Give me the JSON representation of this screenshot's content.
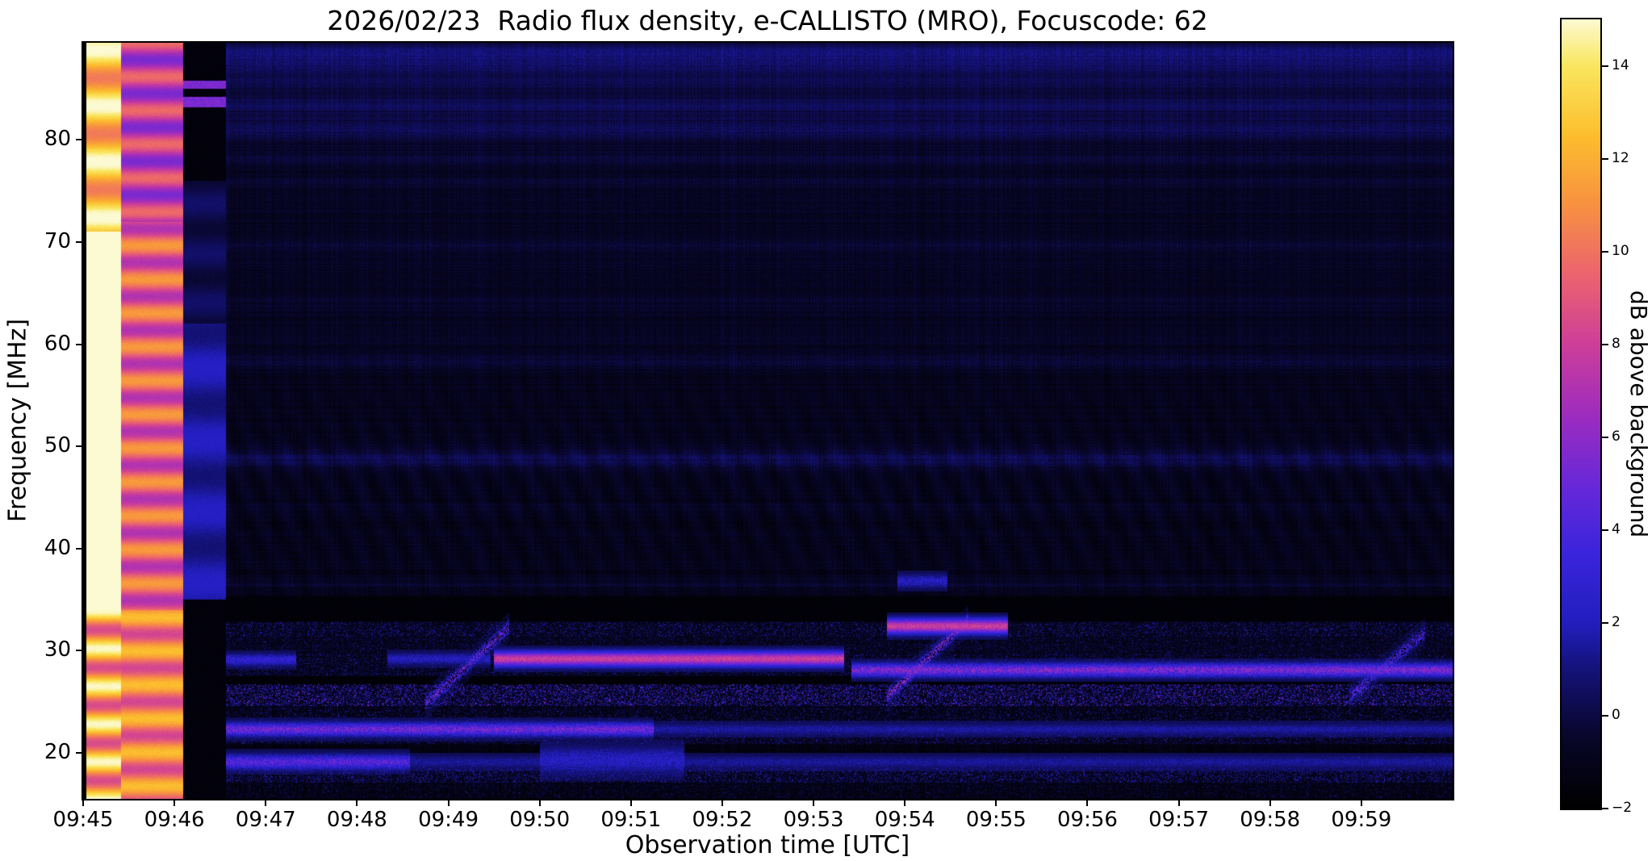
{
  "title": "2026/02/23  Radio flux density, e-CALLISTO (MRO), Focuscode: 62",
  "chart_data": {
    "type": "heatmap",
    "title": "2026/02/23  Radio flux density, e-CALLISTO (MRO), Focuscode: 62",
    "xlabel": "Observation time [UTC]",
    "ylabel": "Frequency [MHz]",
    "colorbar_label": "dB above background",
    "x_ticks": [
      "09:45",
      "09:46",
      "09:47",
      "09:48",
      "09:49",
      "09:50",
      "09:51",
      "09:52",
      "09:53",
      "09:54",
      "09:55",
      "09:56",
      "09:57",
      "09:58",
      "09:59"
    ],
    "x_start_time": "09:45:00",
    "x_end_time": "10:00:00",
    "duration_s": 900,
    "y_ticks": [
      "20",
      "30",
      "40",
      "50",
      "60",
      "70",
      "80"
    ],
    "y_range_mhz": [
      15.5,
      89.5
    ],
    "colorbar_ticks": [
      "−2",
      "0",
      "2",
      "4",
      "6",
      "8",
      "10",
      "12",
      "14"
    ],
    "value_range_db": [
      -2,
      15
    ],
    "legend_position": "right-colorbar",
    "grid": false,
    "colormap": {
      "values": [
        -2,
        -0.5,
        1,
        2,
        3.5,
        5,
        6.5,
        8,
        9.5,
        11,
        12.5,
        14,
        15
      ],
      "colors": [
        "#000000",
        "#080628",
        "#141278",
        "#221ebe",
        "#3a24dc",
        "#6928d8",
        "#9e2cbe",
        "#cd3e99",
        "#eb646e",
        "#f89141",
        "#fcbe2d",
        "#fae65f",
        "#fcfad2"
      ]
    },
    "spectrogram": {
      "main_start": 94,
      "rfi_top": 35,
      "base_db": -0.95,
      "calibration_bands": [
        {
          "t0": 0,
          "t1": 25,
          "style": "white",
          "note": "saturated calibration column, ~15 dB"
        },
        {
          "t0": 25,
          "t1": 66,
          "style": "orange",
          "note": "calibration column ~9-12 dB with horizontal striping"
        },
        {
          "t0": 66,
          "t1": 94,
          "style": "dark",
          "note": "dark column, blue 35-62 MHz, black elsewhere"
        }
      ],
      "blue_rows": [
        {
          "f": 88.4,
          "w": 0.6,
          "db": 1.7
        },
        {
          "f": 87.1,
          "w": 0.5,
          "db": 1.2
        },
        {
          "f": 85.6,
          "w": 0.5,
          "db": 0.9
        },
        {
          "f": 83.4,
          "w": 0.5,
          "db": 1.0
        },
        {
          "f": 81.0,
          "w": 0.8,
          "db": 1.5
        },
        {
          "f": 78.1,
          "w": 0.5,
          "db": 0.8
        },
        {
          "f": 75.9,
          "w": 0.4,
          "db": 0.6
        },
        {
          "f": 69.5,
          "w": 0.5,
          "db": 0.6
        },
        {
          "f": 64.0,
          "w": 0.4,
          "db": 0.4
        },
        {
          "f": 58.4,
          "w": 0.6,
          "db": 0.9
        },
        {
          "f": 48.8,
          "w": 0.7,
          "db": 1.5
        },
        {
          "f": 44.0,
          "w": 0.4,
          "db": 0.3
        },
        {
          "f": 36.6,
          "w": 0.5,
          "db": 0.7
        }
      ],
      "black_bands": [
        [
          32.9,
          35.3
        ],
        [
          26.6,
          27.5
        ]
      ],
      "rfi_bands": [
        {
          "f0": 31.4,
          "f1": 32.8,
          "density": 0.18,
          "base": 0.5,
          "max": 4.0
        },
        {
          "f0": 29.8,
          "f1": 31.3,
          "density": 0.1,
          "base": 0.3,
          "max": 2.5
        },
        {
          "f0": 27.6,
          "f1": 29.7,
          "density": 0.15,
          "base": 0.5,
          "max": 3.0
        },
        {
          "f0": 24.6,
          "f1": 26.7,
          "density": 0.3,
          "base": 0.8,
          "max": 7.5
        },
        {
          "f0": 22.9,
          "f1": 24.4,
          "density": 0.12,
          "base": 0.5,
          "max": 3.0
        },
        {
          "f0": 20.9,
          "f1": 21.9,
          "density": 0.15,
          "base": 0.6,
          "max": 3.5
        },
        {
          "f0": 18.6,
          "f1": 19.6,
          "density": 0.18,
          "base": 0.6,
          "max": 3.0
        },
        {
          "f0": 17.1,
          "f1": 18.5,
          "density": 0.22,
          "base": 0.7,
          "max": 4.0
        },
        {
          "f0": 15.6,
          "f1": 16.9,
          "density": 0.08,
          "base": 0.3,
          "max": 2.0
        }
      ],
      "segments": [
        {
          "t0": 94,
          "t1": 375,
          "f": 22.3,
          "w": 0.45,
          "db": 7.0,
          "speckle": true
        },
        {
          "t0": 375,
          "t1": 900,
          "f": 22.3,
          "w": 0.4,
          "db": 2.2,
          "speckle": true
        },
        {
          "t0": 94,
          "t1": 140,
          "f": 29.1,
          "w": 0.4,
          "db": 4.0,
          "speckle": true
        },
        {
          "t0": 200,
          "t1": 268,
          "f": 29.2,
          "w": 0.4,
          "db": 3.0,
          "speckle": true
        },
        {
          "t0": 270,
          "t1": 500,
          "f": 29.2,
          "w": 0.5,
          "db": 9.0,
          "speckle": false
        },
        {
          "t0": 505,
          "t1": 900,
          "f": 28.1,
          "w": 0.45,
          "db": 7.5,
          "speckle": true
        },
        {
          "t0": 528,
          "t1": 608,
          "f": 32.4,
          "w": 0.5,
          "db": 9.0,
          "speckle": false
        },
        {
          "t0": 94,
          "t1": 215,
          "f": 19.1,
          "w": 0.5,
          "db": 6.0,
          "speckle": true
        },
        {
          "t0": 215,
          "t1": 900,
          "f": 19.1,
          "w": 0.45,
          "db": 2.0,
          "speckle": true
        },
        {
          "t0": 300,
          "t1": 395,
          "f": 19.3,
          "w": 0.9,
          "db": 3.2,
          "speckle": true
        },
        {
          "t0": 535,
          "t1": 568,
          "f": 36.8,
          "w": 0.45,
          "db": 3.2,
          "speckle": true
        }
      ],
      "drift_bursts": [
        {
          "t0": 225,
          "t1": 280,
          "f0": 24.8,
          "f1": 32.3,
          "db": 6.5
        },
        {
          "t0": 528,
          "t1": 582,
          "f0": 25.5,
          "f1": 33.0,
          "db": 7.5
        },
        {
          "t0": 832,
          "t1": 882,
          "f0": 25.5,
          "f1": 31.8,
          "db": 5.5
        }
      ]
    }
  }
}
